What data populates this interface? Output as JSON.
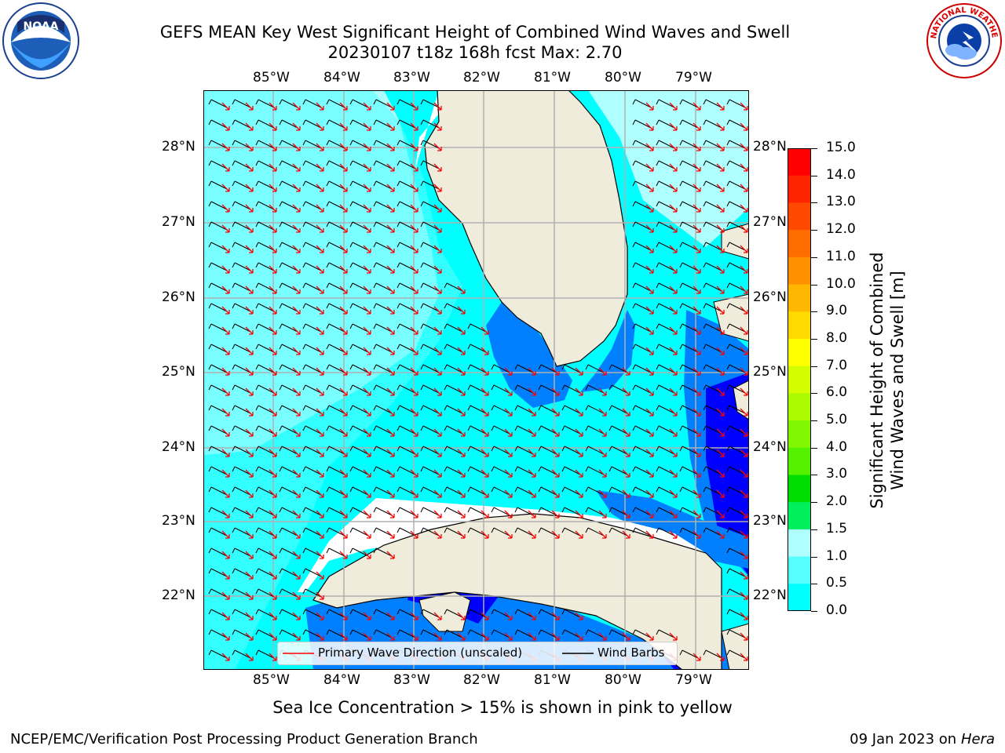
{
  "header": {
    "title_line1": "GEFS MEAN Key West Significant Height of Combined Wind Waves and Swell",
    "title_line2": "20230107 t18z 168h fcst   Max: 2.70"
  },
  "logos": {
    "left": {
      "icon": "noaa-logo-icon",
      "text": "NOAA"
    },
    "right": {
      "icon": "nws-logo-icon",
      "text": "NATIONAL WEATHER SERVICE"
    }
  },
  "map": {
    "lon_labels": [
      "85°W",
      "84°W",
      "83°W",
      "82°W",
      "81°W",
      "80°W",
      "79°W"
    ],
    "lat_labels": [
      "28°N",
      "27°N",
      "26°N",
      "25°N",
      "24°N",
      "23°N",
      "22°N"
    ],
    "colors": {
      "land": "#efecdc",
      "coast": "#000000",
      "grid": "#b0b0b0",
      "arrow": "#ff0000",
      "barb": "#000000"
    }
  },
  "colorbar": {
    "labels": [
      "15.0",
      "14.0",
      "13.0",
      "12.0",
      "11.0",
      "10.0",
      "9.0",
      "8.0",
      "7.0",
      "6.0",
      "5.0",
      "4.0",
      "3.0",
      "2.0",
      "1.5",
      "1.0",
      "0.5",
      "0.0"
    ],
    "colors": [
      "#ff0000",
      "#ff2400",
      "#ff4800",
      "#ff6d00",
      "#ff9100",
      "#ffb600",
      "#ffda00",
      "#ffff00",
      "#d4fd00",
      "#aafa00",
      "#80f700",
      "#55f200",
      "#00dd00",
      "#00f05c",
      "#b0ffff",
      "#55ffff",
      "#00ffff",
      "#0080ff",
      "#0000ff"
    ],
    "title_line1": "Significant Height of Combined",
    "title_line2": "Wind Waves and Swell [m]"
  },
  "legend": {
    "wave_label": "Primary Wave Direction (unscaled)",
    "barb_label": "Wind Barbs",
    "wave_color": "#ff0000",
    "barb_color": "#000000"
  },
  "subtitle": "Sea Ice Concentration > 15% is shown in pink to yellow",
  "footer": {
    "left": "NCEP/EMC/Verification Post Processing Product Generation Branch",
    "right_date": "09 Jan 2023 on ",
    "right_machine": "Hera"
  }
}
